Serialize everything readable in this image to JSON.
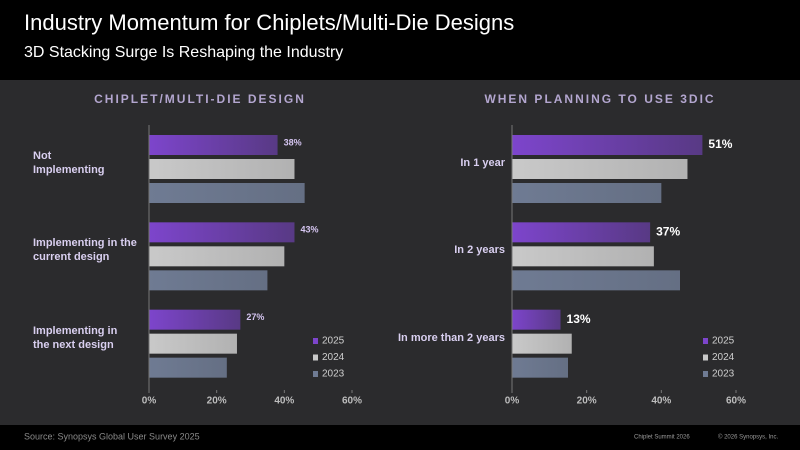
{
  "header": {
    "title": "Industry Momentum for Chiplets/Multi-Die Designs",
    "subtitle": "3D Stacking Surge Is Reshaping the Industry"
  },
  "chart_data": [
    {
      "type": "bar",
      "orientation": "horizontal",
      "title": "CHIPLET/MULTI-DIE DESIGN",
      "categories": [
        "Not\nImplementing",
        "Implementing in the\ncurrent design",
        "Implementing in\nthe next design"
      ],
      "series": [
        {
          "name": "2025",
          "color": "#7d45cc",
          "values": [
            38,
            43,
            27
          ],
          "value_labels": [
            "38%",
            "43%",
            "27%"
          ]
        },
        {
          "name": "2024",
          "color": "#c9c9c9",
          "values": [
            43,
            40,
            26
          ]
        },
        {
          "name": "2023",
          "color": "#6f7b93",
          "values": [
            46,
            35,
            23
          ]
        }
      ],
      "xlim": [
        0,
        60
      ],
      "xticks": [
        {
          "value": 0,
          "label": "0%"
        },
        {
          "value": 20,
          "label": "20%"
        },
        {
          "value": 40,
          "label": "40%"
        },
        {
          "value": 60,
          "label": "60%"
        }
      ],
      "legend": "lower right"
    },
    {
      "type": "bar",
      "orientation": "horizontal",
      "title": "WHEN PLANNING TO USE 3DIC",
      "categories": [
        "In 1 year",
        "In 2 years",
        "In more than 2 years"
      ],
      "series": [
        {
          "name": "2025",
          "color": "#7d45cc",
          "values": [
            51,
            37,
            13
          ],
          "value_labels": [
            "51%",
            "37%",
            "13%"
          ]
        },
        {
          "name": "2024",
          "color": "#c9c9c9",
          "values": [
            47,
            38,
            16
          ]
        },
        {
          "name": "2023",
          "color": "#6f7b93",
          "values": [
            40,
            45,
            15
          ]
        }
      ],
      "xlim": [
        0,
        60
      ],
      "xticks": [
        {
          "value": 0,
          "label": "0%"
        },
        {
          "value": 20,
          "label": "20%"
        },
        {
          "value": 40,
          "label": "40%"
        },
        {
          "value": 60,
          "label": "60%"
        }
      ],
      "legend": "lower right"
    }
  ],
  "footer": {
    "source": "Source: Synopsys Global User Survey 2025",
    "event": "Chiplet Summit 2026",
    "copyright": "© 2026 Synopsys, Inc."
  }
}
